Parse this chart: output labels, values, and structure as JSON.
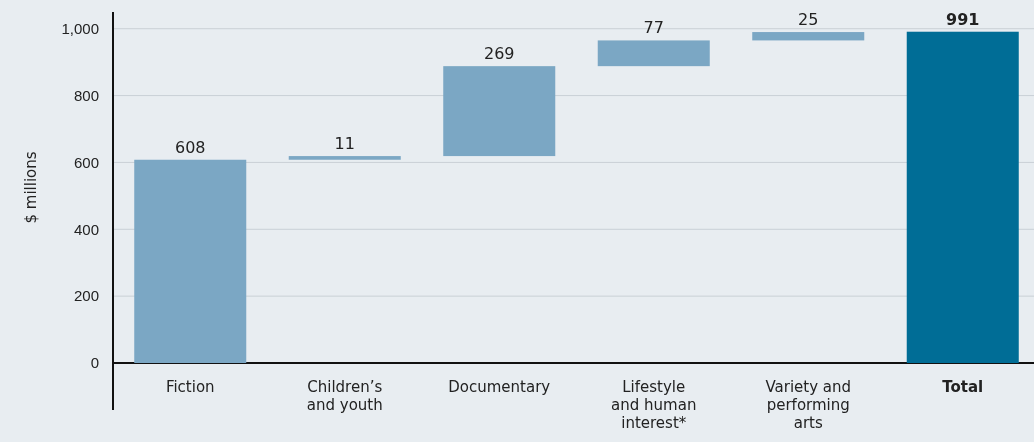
{
  "chart_data": {
    "type": "bar",
    "ylabel": "$ millions",
    "categories": [
      "Fiction",
      "Children’s and youth",
      "Documentary",
      "Lifestyle and human interest*",
      "Variety and performing arts",
      "Total"
    ],
    "values": [
      608,
      11,
      269,
      77,
      25,
      991
    ],
    "base": [
      0,
      608,
      619,
      888,
      965,
      0
    ],
    "colors": [
      "#7ba7c4",
      "#7ba7c4",
      "#7ba7c4",
      "#7ba7c4",
      "#7ba7c4",
      "#006d96"
    ],
    "ylim": [
      0,
      1050
    ],
    "yticks": [
      0,
      {
        "value": 200,
        "label": "200"
      },
      {
        "value": 400,
        "label": "400"
      },
      {
        "value": 600,
        "label": "600"
      },
      {
        "value": 800,
        "label": "800"
      },
      {
        "value": 1000,
        "label": "1,000"
      }
    ],
    "grid": "y",
    "data_labels": true
  }
}
